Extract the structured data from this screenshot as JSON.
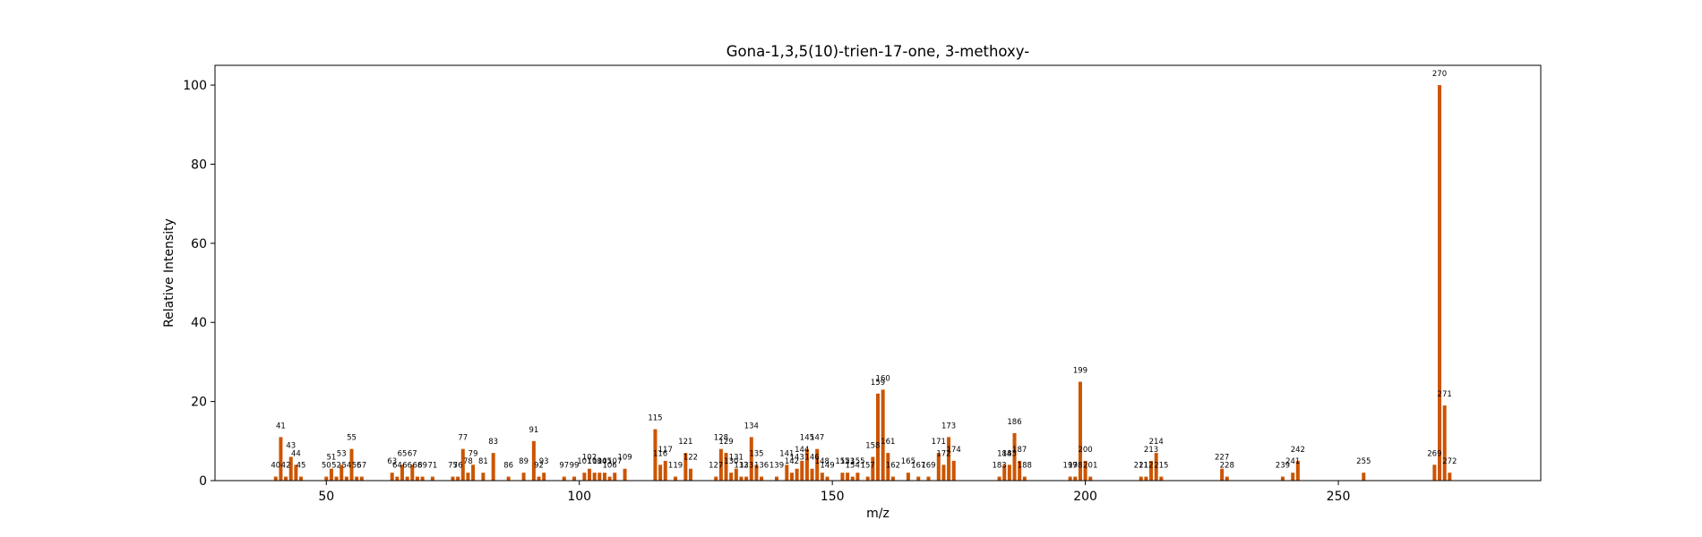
{
  "chart_data": {
    "type": "bar",
    "title": "Gona-1,3,5(10)-trien-17-one, 3-methoxy-",
    "xlabel": "m/z",
    "ylabel": "Relative Intensity",
    "xlim": [
      28,
      290
    ],
    "ylim": [
      0,
      105
    ],
    "xticks": [
      50,
      100,
      150,
      200,
      250
    ],
    "yticks": [
      0,
      20,
      40,
      60,
      80,
      100
    ],
    "bar_color": "#cc5500",
    "grid": false,
    "legend": "none",
    "peaks": [
      {
        "mz": 40,
        "intensity": 1
      },
      {
        "mz": 41,
        "intensity": 11
      },
      {
        "mz": 42,
        "intensity": 1
      },
      {
        "mz": 43,
        "intensity": 6
      },
      {
        "mz": 44,
        "intensity": 4
      },
      {
        "mz": 45,
        "intensity": 1
      },
      {
        "mz": 50,
        "intensity": 1
      },
      {
        "mz": 51,
        "intensity": 3
      },
      {
        "mz": 52,
        "intensity": 1
      },
      {
        "mz": 53,
        "intensity": 4
      },
      {
        "mz": 54,
        "intensity": 1
      },
      {
        "mz": 55,
        "intensity": 8
      },
      {
        "mz": 56,
        "intensity": 1
      },
      {
        "mz": 57,
        "intensity": 1
      },
      {
        "mz": 63,
        "intensity": 2
      },
      {
        "mz": 64,
        "intensity": 1
      },
      {
        "mz": 65,
        "intensity": 4
      },
      {
        "mz": 66,
        "intensity": 1
      },
      {
        "mz": 67,
        "intensity": 4
      },
      {
        "mz": 68,
        "intensity": 1
      },
      {
        "mz": 69,
        "intensity": 1
      },
      {
        "mz": 71,
        "intensity": 1
      },
      {
        "mz": 75,
        "intensity": 1
      },
      {
        "mz": 76,
        "intensity": 1
      },
      {
        "mz": 77,
        "intensity": 8
      },
      {
        "mz": 78,
        "intensity": 2
      },
      {
        "mz": 79,
        "intensity": 4
      },
      {
        "mz": 81,
        "intensity": 2
      },
      {
        "mz": 83,
        "intensity": 7
      },
      {
        "mz": 86,
        "intensity": 1
      },
      {
        "mz": 89,
        "intensity": 2
      },
      {
        "mz": 91,
        "intensity": 10
      },
      {
        "mz": 92,
        "intensity": 1
      },
      {
        "mz": 93,
        "intensity": 2
      },
      {
        "mz": 97,
        "intensity": 1
      },
      {
        "mz": 99,
        "intensity": 1
      },
      {
        "mz": 101,
        "intensity": 2
      },
      {
        "mz": 102,
        "intensity": 3
      },
      {
        "mz": 103,
        "intensity": 2
      },
      {
        "mz": 104,
        "intensity": 2
      },
      {
        "mz": 105,
        "intensity": 2
      },
      {
        "mz": 106,
        "intensity": 1
      },
      {
        "mz": 107,
        "intensity": 2
      },
      {
        "mz": 109,
        "intensity": 3
      },
      {
        "mz": 115,
        "intensity": 13
      },
      {
        "mz": 116,
        "intensity": 4
      },
      {
        "mz": 117,
        "intensity": 5
      },
      {
        "mz": 119,
        "intensity": 1
      },
      {
        "mz": 121,
        "intensity": 7
      },
      {
        "mz": 122,
        "intensity": 3
      },
      {
        "mz": 127,
        "intensity": 1
      },
      {
        "mz": 128,
        "intensity": 8
      },
      {
        "mz": 129,
        "intensity": 7
      },
      {
        "mz": 130,
        "intensity": 2
      },
      {
        "mz": 131,
        "intensity": 3
      },
      {
        "mz": 132,
        "intensity": 1
      },
      {
        "mz": 133,
        "intensity": 1
      },
      {
        "mz": 134,
        "intensity": 11
      },
      {
        "mz": 135,
        "intensity": 4
      },
      {
        "mz": 136,
        "intensity": 1
      },
      {
        "mz": 139,
        "intensity": 1
      },
      {
        "mz": 141,
        "intensity": 4
      },
      {
        "mz": 142,
        "intensity": 2
      },
      {
        "mz": 143,
        "intensity": 3
      },
      {
        "mz": 144,
        "intensity": 5
      },
      {
        "mz": 145,
        "intensity": 8
      },
      {
        "mz": 146,
        "intensity": 3
      },
      {
        "mz": 147,
        "intensity": 8
      },
      {
        "mz": 148,
        "intensity": 2
      },
      {
        "mz": 149,
        "intensity": 1
      },
      {
        "mz": 152,
        "intensity": 2
      },
      {
        "mz": 153,
        "intensity": 2
      },
      {
        "mz": 154,
        "intensity": 1
      },
      {
        "mz": 155,
        "intensity": 2
      },
      {
        "mz": 157,
        "intensity": 1
      },
      {
        "mz": 158,
        "intensity": 6
      },
      {
        "mz": 159,
        "intensity": 22
      },
      {
        "mz": 160,
        "intensity": 23
      },
      {
        "mz": 161,
        "intensity": 7
      },
      {
        "mz": 162,
        "intensity": 1
      },
      {
        "mz": 165,
        "intensity": 2
      },
      {
        "mz": 167,
        "intensity": 1
      },
      {
        "mz": 169,
        "intensity": 1
      },
      {
        "mz": 171,
        "intensity": 7
      },
      {
        "mz": 172,
        "intensity": 4
      },
      {
        "mz": 173,
        "intensity": 11
      },
      {
        "mz": 174,
        "intensity": 5
      },
      {
        "mz": 183,
        "intensity": 1
      },
      {
        "mz": 184,
        "intensity": 4
      },
      {
        "mz": 185,
        "intensity": 4
      },
      {
        "mz": 186,
        "intensity": 12
      },
      {
        "mz": 187,
        "intensity": 5
      },
      {
        "mz": 188,
        "intensity": 1
      },
      {
        "mz": 197,
        "intensity": 1
      },
      {
        "mz": 198,
        "intensity": 1
      },
      {
        "mz": 199,
        "intensity": 25
      },
      {
        "mz": 200,
        "intensity": 5
      },
      {
        "mz": 201,
        "intensity": 1
      },
      {
        "mz": 211,
        "intensity": 1
      },
      {
        "mz": 212,
        "intensity": 1
      },
      {
        "mz": 213,
        "intensity": 5
      },
      {
        "mz": 214,
        "intensity": 7
      },
      {
        "mz": 215,
        "intensity": 1
      },
      {
        "mz": 227,
        "intensity": 3
      },
      {
        "mz": 228,
        "intensity": 1
      },
      {
        "mz": 239,
        "intensity": 1
      },
      {
        "mz": 241,
        "intensity": 2
      },
      {
        "mz": 242,
        "intensity": 5
      },
      {
        "mz": 255,
        "intensity": 2
      },
      {
        "mz": 269,
        "intensity": 4
      },
      {
        "mz": 270,
        "intensity": 100
      },
      {
        "mz": 271,
        "intensity": 19
      },
      {
        "mz": 272,
        "intensity": 2
      }
    ]
  }
}
